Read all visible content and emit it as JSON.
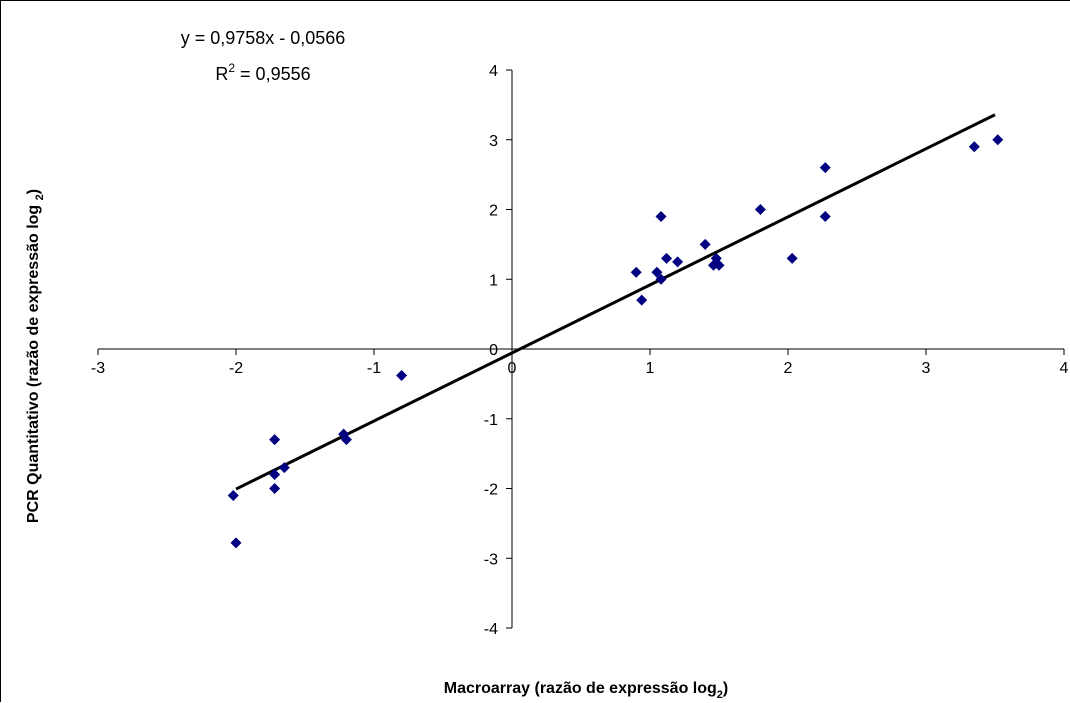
{
  "chart_data": {
    "type": "scatter",
    "xlabel_prefix": "Macroarray (razão de expressão log",
    "xlabel_sub": "2",
    "xlabel_suffix": ")",
    "ylabel_prefix": "PCR Quantitativo (razão de expressão log ",
    "ylabel_sub": "2",
    "ylabel_suffix": ")",
    "xlim": [
      -3,
      4
    ],
    "ylim": [
      -4,
      4
    ],
    "xticks": [
      -3,
      -2,
      -1,
      0,
      1,
      2,
      3,
      4
    ],
    "yticks": [
      -4,
      -3,
      -2,
      -1,
      0,
      1,
      2,
      3,
      4
    ],
    "grid": false,
    "legend": "none",
    "marker": "diamond",
    "point_color": "#000080",
    "line_color": "#000000",
    "trendline": {
      "slope": 0.9758,
      "intercept": -0.0566,
      "x_range": [
        -2.0,
        3.5
      ]
    },
    "equation_text": "y = 0,9758x - 0,0566",
    "r2_prefix": "R",
    "r2_sup": "2",
    "r2_suffix": " = 0,9556",
    "points": [
      {
        "x": -2.02,
        "y": -2.1
      },
      {
        "x": -2.0,
        "y": -2.78
      },
      {
        "x": -1.72,
        "y": -1.3
      },
      {
        "x": -1.72,
        "y": -1.8
      },
      {
        "x": -1.72,
        "y": -2.0
      },
      {
        "x": -1.65,
        "y": -1.7
      },
      {
        "x": -1.22,
        "y": -1.22
      },
      {
        "x": -1.2,
        "y": -1.3
      },
      {
        "x": -0.8,
        "y": -0.38
      },
      {
        "x": 0.9,
        "y": 1.1
      },
      {
        "x": 0.94,
        "y": 0.7
      },
      {
        "x": 1.05,
        "y": 1.1
      },
      {
        "x": 1.08,
        "y": 1.0
      },
      {
        "x": 1.08,
        "y": 1.9
      },
      {
        "x": 1.12,
        "y": 1.3
      },
      {
        "x": 1.2,
        "y": 1.25
      },
      {
        "x": 1.4,
        "y": 1.5
      },
      {
        "x": 1.46,
        "y": 1.2
      },
      {
        "x": 1.48,
        "y": 1.3
      },
      {
        "x": 1.5,
        "y": 1.2
      },
      {
        "x": 1.8,
        "y": 2.0
      },
      {
        "x": 2.03,
        "y": 1.3
      },
      {
        "x": 2.27,
        "y": 2.6
      },
      {
        "x": 2.27,
        "y": 1.9
      },
      {
        "x": 3.35,
        "y": 2.9
      },
      {
        "x": 3.52,
        "y": 3.0
      }
    ]
  }
}
